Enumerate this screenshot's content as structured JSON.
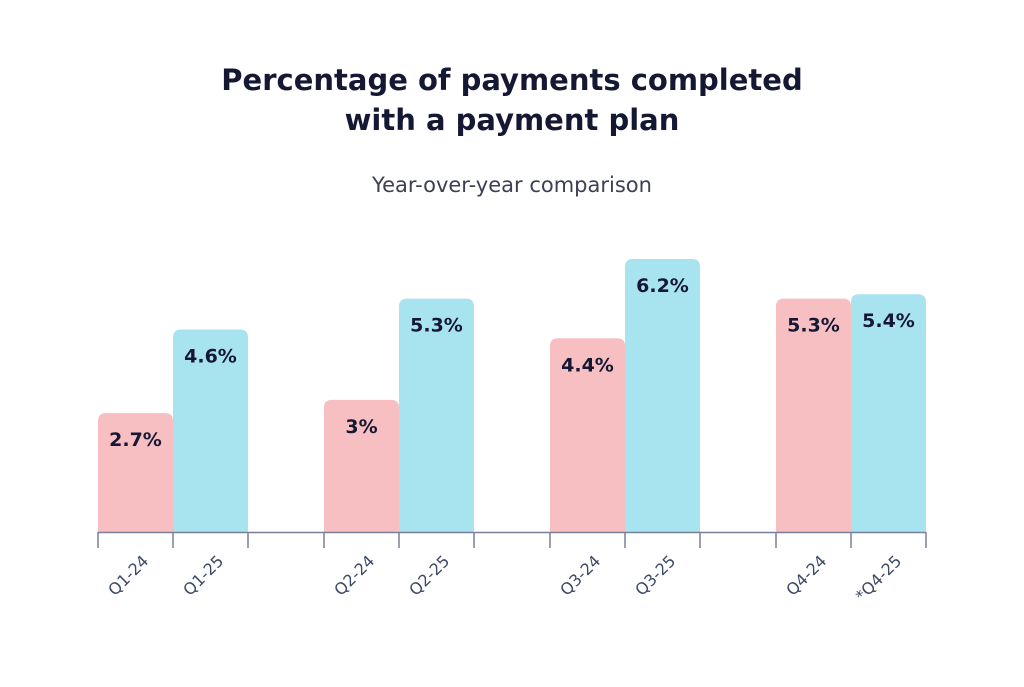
{
  "chart_data": {
    "type": "bar",
    "title_line1": "Percentage of payments completed",
    "title_line2": "with a payment plan",
    "subtitle": "Year-over-year comparison",
    "categories": [
      "Q1",
      "Q2",
      "Q3",
      "Q4"
    ],
    "series": [
      {
        "color": "#f7bfc1",
        "tick_labels": [
          "Q1-24",
          "Q2-24",
          "Q3-24",
          "Q4-24"
        ],
        "values": [
          2.7,
          3.0,
          4.4,
          5.3
        ],
        "data_labels": [
          "2.7%",
          "3%",
          "4.4%",
          "5.3%"
        ]
      },
      {
        "color": "#a8e3f0",
        "tick_labels": [
          "Q1-25",
          "Q2-25",
          "Q3-25",
          "*Q4-25"
        ],
        "values": [
          4.6,
          5.3,
          6.2,
          5.4
        ],
        "data_labels": [
          "4.6%",
          "5.3%",
          "6.2%",
          "5.4%"
        ]
      }
    ],
    "ylim": [
      0,
      6.2
    ],
    "axis_color": "#7a7f99",
    "grid": false,
    "legend": "none"
  }
}
